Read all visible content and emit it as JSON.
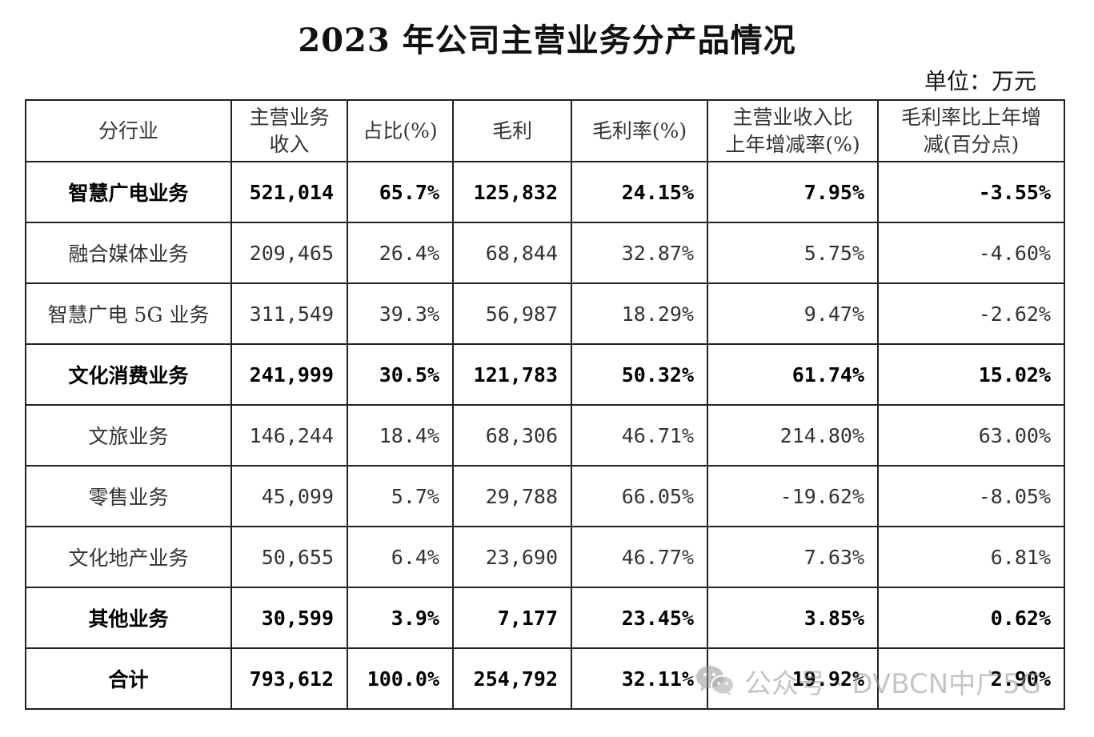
{
  "title": "2023 年公司主营业务分产品情况",
  "unit": "单位：万元",
  "table": {
    "headers": [
      "分行业",
      "主营业务\n收入",
      "占比(%)",
      "毛利",
      "毛利率(%)",
      "主营业收入比\n上年增减率(%)",
      "毛利率比上年增\n减(百分点)"
    ],
    "rows": [
      {
        "cells": [
          "智慧广电业务",
          "521,014",
          "65.7%",
          "125,832",
          "24.15%",
          "7.95%",
          "-3.55%"
        ],
        "bold": true
      },
      {
        "cells": [
          "融合媒体业务",
          "209,465",
          "26.4%",
          "68,844",
          "32.87%",
          "5.75%",
          "-4.60%"
        ],
        "bold": false
      },
      {
        "cells": [
          "智慧广电 5G 业务",
          "311,549",
          "39.3%",
          "56,987",
          "18.29%",
          "9.47%",
          "-2.62%"
        ],
        "bold": false
      },
      {
        "cells": [
          "文化消费业务",
          "241,999",
          "30.5%",
          "121,783",
          "50.32%",
          "61.74%",
          "15.02%"
        ],
        "bold": true
      },
      {
        "cells": [
          "文旅业务",
          "146,244",
          "18.4%",
          "68,306",
          "46.71%",
          "214.80%",
          "63.00%"
        ],
        "bold": false
      },
      {
        "cells": [
          "零售业务",
          "45,099",
          "5.7%",
          "29,788",
          "66.05%",
          "-19.62%",
          "-8.05%"
        ],
        "bold": false
      },
      {
        "cells": [
          "文化地产业务",
          "50,655",
          "6.4%",
          "23,690",
          "46.77%",
          "7.63%",
          "6.81%"
        ],
        "bold": false
      },
      {
        "cells": [
          "其他业务",
          "30,599",
          "3.9%",
          "7,177",
          "23.45%",
          "3.85%",
          "0.62%"
        ],
        "bold": true
      },
      {
        "cells": [
          "合计",
          "793,612",
          "100.0%",
          "254,792",
          "32.11%",
          "19.92%",
          "2.90%"
        ],
        "bold": true
      }
    ]
  },
  "watermark": {
    "text": "公众号 · DVBCN中广5G",
    "icon": "wechat-icon"
  }
}
